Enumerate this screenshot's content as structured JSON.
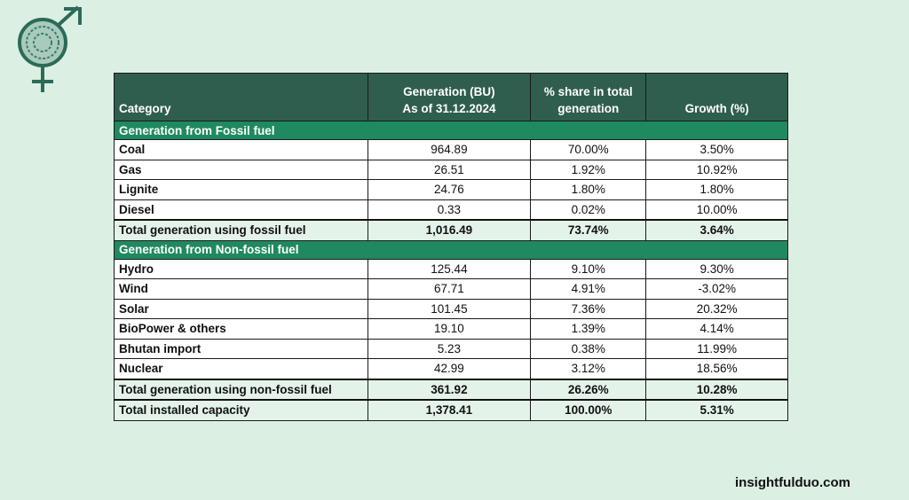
{
  "brand": {
    "logo": "gender-symbol-fingerprint-logo",
    "site": "insightfulduo.com"
  },
  "colors": {
    "header": "#2f5e4e",
    "section": "#1f8a5f",
    "total": "#e4f3e9",
    "background": "#dcefe3"
  },
  "table": {
    "headers": [
      "Category",
      "Generation (BU)",
      "As of 31.12.2024",
      "% share in total",
      "generation",
      "Growth (%)"
    ],
    "sections": [
      {
        "title": "Generation from Fossil fuel",
        "rows": [
          [
            "Coal",
            "964.89",
            "70.00%",
            "3.50%"
          ],
          [
            "Gas",
            "26.51",
            "1.92%",
            "10.92%"
          ],
          [
            "Lignite",
            "24.76",
            "1.80%",
            "1.80%"
          ],
          [
            "Diesel",
            "0.33",
            "0.02%",
            "10.00%"
          ]
        ],
        "total": [
          "Total generation using fossil fuel",
          "1,016.49",
          "73.74%",
          "3.64%"
        ]
      },
      {
        "title": "Generation from Non-fossil fuel",
        "rows": [
          [
            "Hydro",
            "125.44",
            "9.10%",
            "9.30%"
          ],
          [
            "Wind",
            "67.71",
            "4.91%",
            "-3.02%"
          ],
          [
            "Solar",
            "101.45",
            "7.36%",
            "20.32%"
          ],
          [
            "BioPower & others",
            "19.10",
            "1.39%",
            "4.14%"
          ],
          [
            "Bhutan import",
            "5.23",
            "0.38%",
            "11.99%"
          ],
          [
            "Nuclear",
            "42.99",
            "3.12%",
            "18.56%"
          ]
        ],
        "total": [
          "Total generation using non-fossil fuel",
          "361.92",
          "26.26%",
          "10.28%"
        ]
      }
    ],
    "grand_total": [
      "Total installed capacity",
      "1,378.41",
      "100.00%",
      "5.31%"
    ]
  }
}
